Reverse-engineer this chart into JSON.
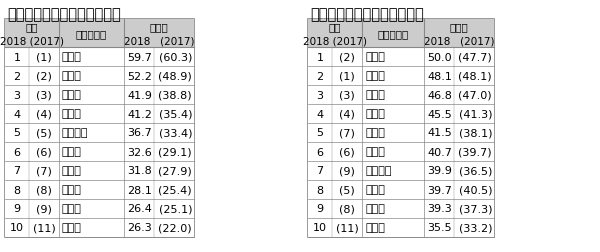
{
  "left_title": "都道府県の魅力度ランキング",
  "right_title": "市区町村の魅力度ランキング",
  "left_rows": [
    [
      "1",
      "(1)",
      "北海道",
      "59.7",
      "(60.3)"
    ],
    [
      "2",
      "(2)",
      "京都府",
      "52.2",
      "(48.9)"
    ],
    [
      "3",
      "(3)",
      "東京都",
      "41.9",
      "(38.8)"
    ],
    [
      "4",
      "(4)",
      "沖縄県",
      "41.2",
      "(35.4)"
    ],
    [
      "5",
      "(5)",
      "神奈川県",
      "36.7",
      "(33.4)"
    ],
    [
      "6",
      "(6)",
      "奈良県",
      "32.6",
      "(29.1)"
    ],
    [
      "7",
      "(7)",
      "大阪府",
      "31.8",
      "(27.9)"
    ],
    [
      "8",
      "(8)",
      "福岡県",
      "28.1",
      "(25.4)"
    ],
    [
      "9",
      "(9)",
      "長野県",
      "26.4",
      "(25.1)"
    ],
    [
      "10",
      "(11)",
      "長崎県",
      "26.3",
      "(22.0)"
    ]
  ],
  "right_rows": [
    [
      "1",
      "(2)",
      "函館市",
      "50.0",
      "(47.7)"
    ],
    [
      "2",
      "(1)",
      "京都市",
      "48.1",
      "(48.1)"
    ],
    [
      "3",
      "(3)",
      "札幌市",
      "46.8",
      "(47.0)"
    ],
    [
      "4",
      "(4)",
      "小樽市",
      "45.5",
      "(41.3)"
    ],
    [
      "5",
      "(7)",
      "神戸市",
      "41.5",
      "(38.1)"
    ],
    [
      "6",
      "(6)",
      "横浜市",
      "40.7",
      "(39.7)"
    ],
    [
      "7",
      "(9)",
      "富良野市",
      "39.9",
      "(36.5)"
    ],
    [
      "8",
      "(5)",
      "鎌倉市",
      "39.7",
      "(40.5)"
    ],
    [
      "9",
      "(8)",
      "金沢市",
      "39.3",
      "(37.3)"
    ],
    [
      "10",
      "(11)",
      "仙台市",
      "35.5",
      "(33.2)"
    ]
  ],
  "left_name_header": "都道府県名",
  "right_name_header": "市区町村名",
  "header_bg": "#cccccc",
  "border_color": "#888888",
  "title_fontsize": 10.5,
  "header_fontsize": 7.5,
  "cell_fontsize": 8.0
}
